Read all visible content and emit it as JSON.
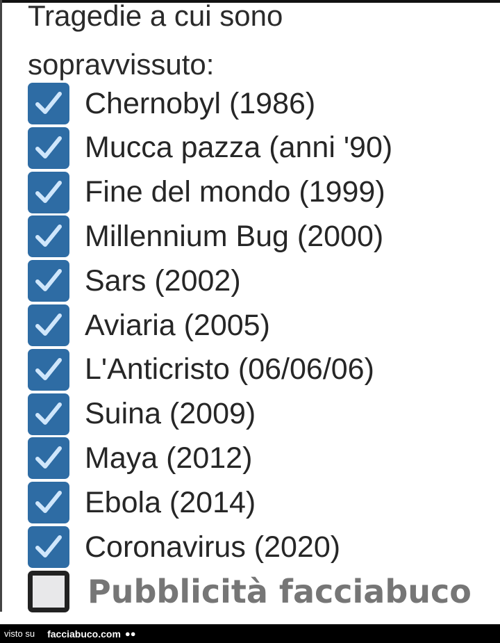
{
  "title_lines": [
    "Tragedie a cui sono",
    "sopravvissuto:"
  ],
  "colors": {
    "checkbox": "#2e6ca4",
    "check": "#cfe6fb",
    "text": "#262626",
    "last_item": "#767676"
  },
  "items": [
    {
      "label": "Chernobyl (1986)",
      "checked": true
    },
    {
      "label": "Mucca pazza (anni '90)",
      "checked": true
    },
    {
      "label": "Fine del mondo (1999)",
      "checked": true
    },
    {
      "label": "Millennium Bug (2000)",
      "checked": true
    },
    {
      "label": "Sars (2002)",
      "checked": true
    },
    {
      "label": "Aviaria (2005)",
      "checked": true
    },
    {
      "label": "L'Anticristo (06/06/06)",
      "checked": true
    },
    {
      "label": "Suina (2009)",
      "checked": true
    },
    {
      "label": "Maya (2012)",
      "checked": true
    },
    {
      "label": "Ebola (2014)",
      "checked": true
    },
    {
      "label": "Coronavirus (2020)",
      "checked": true
    },
    {
      "label": "Pubblicità facciabuco",
      "checked": false
    }
  ],
  "footer": {
    "prefix": "visto su",
    "site": "facciabuco.com",
    "logo_icon": "eyes-icon"
  }
}
